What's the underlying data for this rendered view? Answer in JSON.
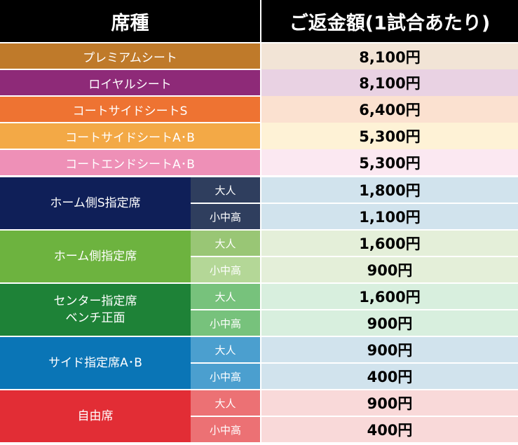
{
  "header": {
    "seat_type": "席種",
    "refund_amount": "ご返金額(1試合あたり)"
  },
  "single_rows": [
    {
      "name": "プレミアムシート",
      "price": "8,100円"
    },
    {
      "name": "ロイヤルシート",
      "price": "8,100円"
    },
    {
      "name": "コートサイドシートS",
      "price": "6,400円"
    },
    {
      "name": "コートサイドシートA･B",
      "price": "5,300円"
    },
    {
      "name": "コートエンドシートA･B",
      "price": "5,300円"
    }
  ],
  "groups": [
    {
      "name": "ホーム側S指定席",
      "rows": [
        {
          "sub": "大人",
          "price": "1,800円"
        },
        {
          "sub": "小中高",
          "price": "1,100円"
        }
      ]
    },
    {
      "name": "ホーム側指定席",
      "rows": [
        {
          "sub": "大人",
          "price": "1,600円"
        },
        {
          "sub": "小中高",
          "price": "900円"
        }
      ]
    },
    {
      "name_line1": "センター指定席",
      "name_line2": "ベンチ正面",
      "rows": [
        {
          "sub": "大人",
          "price": "1,600円"
        },
        {
          "sub": "小中高",
          "price": "900円"
        }
      ]
    },
    {
      "name": "サイド指定席A･B",
      "rows": [
        {
          "sub": "大人",
          "price": "900円"
        },
        {
          "sub": "小中高",
          "price": "400円"
        }
      ]
    },
    {
      "name": "自由席",
      "rows": [
        {
          "sub": "大人",
          "price": "900円"
        },
        {
          "sub": "小中高",
          "price": "400円"
        }
      ]
    }
  ],
  "colors": {
    "header": "#000000",
    "premium": "#bf7a2a",
    "royal": "#8e2a78",
    "courtside_s": "#ee7332",
    "courtside_ab": "#f3a946",
    "courtend_ab": "#ee90b7",
    "home_s": "#0f1f58",
    "home": "#6db33f",
    "center": "#1e8237",
    "side": "#0a75b6",
    "free": "#e22d35"
  }
}
